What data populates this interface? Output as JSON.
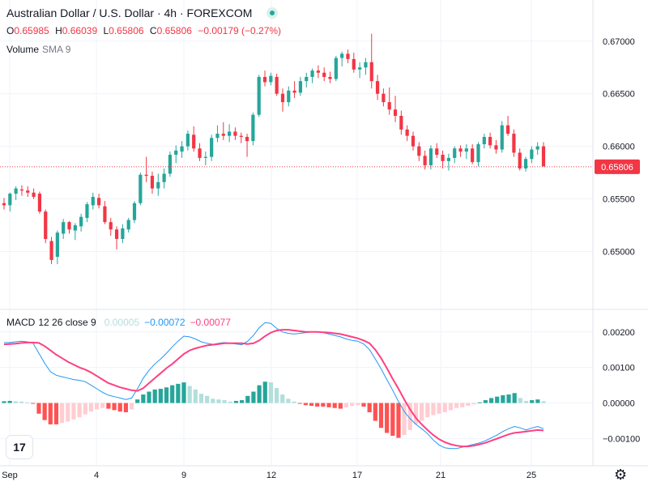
{
  "header": {
    "title": "Australian Dollar / U.S. Dollar · 4h · FOREXCOM",
    "ohlc": [
      {
        "label": "O",
        "value": "0.65985"
      },
      {
        "label": "H",
        "value": "0.66039"
      },
      {
        "label": "L",
        "value": "0.65806"
      },
      {
        "label": "C",
        "value": "0.65806"
      }
    ],
    "change": "−0.00179 (−0.27%)",
    "volume_label": "Volume",
    "volume_sub": "SMA 9"
  },
  "macd_legend": {
    "label": "MACD",
    "params": "12 26 close 9",
    "hist_value": "0.00005",
    "macd_value": "−0.00072",
    "signal_value": "−0.00077"
  },
  "colors": {
    "up": "#26a69a",
    "down": "#f23645",
    "hist_up_strong": "#26a69a",
    "hist_up_weak": "#b2dfdb",
    "hist_down_strong": "#ff5252",
    "hist_down_weak": "#ffcdd2",
    "macd_line": "#2196f3",
    "signal_line": "#ff4081"
  },
  "icons": {
    "logo": "tradingview-logo-icon",
    "settings": "gear-icon",
    "live": "live-status-icon"
  },
  "logo_text": "17",
  "settings_glyph": "⚙",
  "chart_data": [
    {
      "type": "candlestick",
      "title": "Australian Dollar / U.S. Dollar · 4h · FOREXCOM",
      "y_ticks": [
        "0.67000",
        "0.66500",
        "0.66000",
        "0.65500",
        "0.65000"
      ],
      "x_ticks": [
        "Sep",
        "4",
        "9",
        "12",
        "17",
        "21",
        "25"
      ],
      "ylim": [
        0.6445,
        0.6716
      ],
      "last_price": "0.65806",
      "grid": true,
      "candles": [
        [
          0.6546,
          0.6551,
          0.654,
          0.6544
        ],
        [
          0.6544,
          0.6556,
          0.6538,
          0.6555
        ],
        [
          0.6555,
          0.6562,
          0.6549,
          0.656
        ],
        [
          0.6559,
          0.6563,
          0.6553,
          0.6558
        ],
        [
          0.6558,
          0.6562,
          0.6552,
          0.6556
        ],
        [
          0.6556,
          0.656,
          0.655,
          0.6552
        ],
        [
          0.6555,
          0.6557,
          0.6536,
          0.6538
        ],
        [
          0.6538,
          0.654,
          0.6508,
          0.6512
        ],
        [
          0.651,
          0.6514,
          0.6488,
          0.6492
        ],
        [
          0.6495,
          0.652,
          0.6488,
          0.6518
        ],
        [
          0.6517,
          0.6531,
          0.6512,
          0.6528
        ],
        [
          0.6528,
          0.6529,
          0.6517,
          0.6521
        ],
        [
          0.652,
          0.6527,
          0.6511,
          0.6525
        ],
        [
          0.6524,
          0.6536,
          0.6519,
          0.6533
        ],
        [
          0.6532,
          0.6547,
          0.6528,
          0.6545
        ],
        [
          0.6544,
          0.6556,
          0.654,
          0.6552
        ],
        [
          0.6551,
          0.6555,
          0.6541,
          0.6544
        ],
        [
          0.6543,
          0.6548,
          0.6526,
          0.6528
        ],
        [
          0.6528,
          0.6532,
          0.6515,
          0.6521
        ],
        [
          0.6521,
          0.6524,
          0.6502,
          0.6512
        ],
        [
          0.6512,
          0.6526,
          0.6508,
          0.6522
        ],
        [
          0.6521,
          0.6532,
          0.6518,
          0.653
        ],
        [
          0.653,
          0.6548,
          0.6527,
          0.6546
        ],
        [
          0.6546,
          0.6575,
          0.6544,
          0.6573
        ],
        [
          0.6573,
          0.659,
          0.6566,
          0.6572
        ],
        [
          0.6572,
          0.6576,
          0.6555,
          0.656
        ],
        [
          0.656,
          0.6574,
          0.6553,
          0.6566
        ],
        [
          0.6566,
          0.6579,
          0.656,
          0.6574
        ],
        [
          0.6574,
          0.6595,
          0.6571,
          0.6592
        ],
        [
          0.6592,
          0.6601,
          0.6584,
          0.6596
        ],
        [
          0.6595,
          0.6605,
          0.6589,
          0.66
        ],
        [
          0.66,
          0.6615,
          0.6596,
          0.6612
        ],
        [
          0.6611,
          0.6619,
          0.6595,
          0.6598
        ],
        [
          0.6598,
          0.6603,
          0.6586,
          0.6589
        ],
        [
          0.6589,
          0.6595,
          0.6582,
          0.659
        ],
        [
          0.659,
          0.6611,
          0.6586,
          0.6608
        ],
        [
          0.6608,
          0.662,
          0.6604,
          0.6612
        ],
        [
          0.6612,
          0.6623,
          0.6606,
          0.661
        ],
        [
          0.661,
          0.6621,
          0.6604,
          0.6614
        ],
        [
          0.6614,
          0.6618,
          0.6606,
          0.661
        ],
        [
          0.661,
          0.6613,
          0.6603,
          0.6609
        ],
        [
          0.6609,
          0.6612,
          0.659,
          0.6605
        ],
        [
          0.6605,
          0.6632,
          0.6601,
          0.663
        ],
        [
          0.663,
          0.6668,
          0.6628,
          0.6666
        ],
        [
          0.6666,
          0.6672,
          0.6657,
          0.6661
        ],
        [
          0.6661,
          0.667,
          0.6658,
          0.6667
        ],
        [
          0.6666,
          0.6669,
          0.6648,
          0.665
        ],
        [
          0.665,
          0.6655,
          0.6633,
          0.6642
        ],
        [
          0.6642,
          0.6657,
          0.6638,
          0.6653
        ],
        [
          0.6653,
          0.6662,
          0.6646,
          0.6651
        ],
        [
          0.6651,
          0.6666,
          0.6648,
          0.6662
        ],
        [
          0.6662,
          0.667,
          0.6656,
          0.6666
        ],
        [
          0.6666,
          0.6674,
          0.666,
          0.6672
        ],
        [
          0.6672,
          0.6677,
          0.6665,
          0.667
        ],
        [
          0.667,
          0.6675,
          0.6662,
          0.6666
        ],
        [
          0.6666,
          0.6671,
          0.666,
          0.6664
        ],
        [
          0.6664,
          0.6686,
          0.6662,
          0.6684
        ],
        [
          0.6684,
          0.669,
          0.6676,
          0.6688
        ],
        [
          0.6688,
          0.6692,
          0.6679,
          0.6683
        ],
        [
          0.6683,
          0.6689,
          0.667,
          0.6673
        ],
        [
          0.6673,
          0.668,
          0.6665,
          0.6675
        ],
        [
          0.6675,
          0.6684,
          0.6668,
          0.668
        ],
        [
          0.668,
          0.6707,
          0.6655,
          0.6662
        ],
        [
          0.6662,
          0.6668,
          0.6644,
          0.665
        ],
        [
          0.665,
          0.6655,
          0.6638,
          0.6642
        ],
        [
          0.6642,
          0.6656,
          0.663,
          0.6635
        ],
        [
          0.6635,
          0.6648,
          0.6623,
          0.6629
        ],
        [
          0.6629,
          0.6634,
          0.6611,
          0.6616
        ],
        [
          0.6616,
          0.662,
          0.6605,
          0.661
        ],
        [
          0.661,
          0.6614,
          0.6596,
          0.66
        ],
        [
          0.66,
          0.6604,
          0.6586,
          0.6591
        ],
        [
          0.6591,
          0.6596,
          0.6578,
          0.6582
        ],
        [
          0.6582,
          0.6601,
          0.6578,
          0.6598
        ],
        [
          0.6598,
          0.6603,
          0.6589,
          0.6592
        ],
        [
          0.6592,
          0.6596,
          0.6579,
          0.6586
        ],
        [
          0.6586,
          0.6593,
          0.6577,
          0.6589
        ],
        [
          0.6589,
          0.66,
          0.6584,
          0.6598
        ],
        [
          0.6598,
          0.6601,
          0.659,
          0.6595
        ],
        [
          0.6595,
          0.6602,
          0.6588,
          0.6598
        ],
        [
          0.6598,
          0.6602,
          0.6583,
          0.6585
        ],
        [
          0.6585,
          0.6604,
          0.6581,
          0.6602
        ],
        [
          0.6602,
          0.6612,
          0.6598,
          0.6609
        ],
        [
          0.6609,
          0.6613,
          0.6598,
          0.6601
        ],
        [
          0.6601,
          0.6606,
          0.6593,
          0.6597
        ],
        [
          0.6597,
          0.6624,
          0.6594,
          0.662
        ],
        [
          0.662,
          0.6629,
          0.661,
          0.6612
        ],
        [
          0.6612,
          0.6616,
          0.659,
          0.6594
        ],
        [
          0.6594,
          0.6598,
          0.6577,
          0.6579
        ],
        [
          0.6579,
          0.659,
          0.6576,
          0.6588
        ],
        [
          0.6588,
          0.66,
          0.6584,
          0.6597
        ],
        [
          0.6597,
          0.6604,
          0.6592,
          0.66
        ],
        [
          0.66,
          0.6604,
          0.6581,
          0.6581
        ]
      ]
    },
    {
      "type": "bar+line",
      "title": "MACD 12 26 close 9",
      "y_ticks": [
        "0.00200",
        "0.00100",
        "0.00000",
        "−0.00100"
      ],
      "ylim": [
        -0.00165,
        0.00245
      ],
      "series": [
        {
          "name": "Histogram",
          "values": [
            5e-05,
            6e-05,
            5e-05,
            4e-05,
            2e-05,
            -1e-05,
            -0.0003,
            -0.00048,
            -0.0006,
            -0.0006,
            -0.00056,
            -0.00052,
            -0.00046,
            -0.0004,
            -0.00032,
            -0.00024,
            -0.00018,
            -0.00014,
            -0.00016,
            -0.0002,
            -0.00024,
            -0.00026,
            -0.00018,
            0.0001,
            0.00024,
            0.00032,
            0.00038,
            0.0004,
            0.00044,
            0.0005,
            0.00054,
            0.00058,
            0.00048,
            0.00038,
            0.00026,
            0.0002,
            0.00012,
            0.0001,
            8e-05,
            4e-05,
            6e-05,
            8e-05,
            0.0002,
            0.00032,
            0.0005,
            0.0006,
            0.00058,
            0.00042,
            0.00024,
            0.00012,
            4e-05,
            -2e-05,
            -6e-05,
            -8e-05,
            -0.0001,
            -0.0001,
            -0.00012,
            -0.00014,
            -0.00016,
            -0.00012,
            -8e-05,
            -6e-05,
            -0.0001,
            -0.00026,
            -0.0005,
            -0.0007,
            -0.00084,
            -0.00092,
            -0.00098,
            -0.0009,
            -0.00076,
            -0.0006,
            -0.0005,
            -0.0004,
            -0.00034,
            -0.0003,
            -0.00026,
            -0.0002,
            -0.00014,
            -0.00012,
            -8e-05,
            -4e-05,
            2e-05,
            8e-05,
            0.00014,
            0.00018,
            0.00022,
            0.00024,
            0.00028,
            0.00014,
            6e-05,
            8e-05,
            0.0001,
            5e-05
          ]
        },
        {
          "name": "MACD",
          "values": [
            0.0017,
            0.0017,
            0.00172,
            0.00174,
            0.00172,
            0.00168,
            0.0014,
            0.00112,
            0.00088,
            0.00078,
            0.00074,
            0.0007,
            0.00066,
            0.00064,
            0.0006,
            0.0005,
            0.0004,
            0.0003,
            0.00022,
            0.00018,
            0.00014,
            0.0001,
            0.00014,
            0.0004,
            0.0007,
            0.00092,
            0.0011,
            0.00124,
            0.0014,
            0.00158,
            0.00174,
            0.00188,
            0.00186,
            0.0018,
            0.00172,
            0.00168,
            0.00165,
            0.00168,
            0.0017,
            0.00168,
            0.00166,
            0.00164,
            0.00174,
            0.0019,
            0.00212,
            0.00226,
            0.00224,
            0.0021,
            0.002,
            0.00196,
            0.00194,
            0.00196,
            0.00198,
            0.002,
            0.002,
            0.00198,
            0.00194,
            0.0019,
            0.00186,
            0.0018,
            0.00176,
            0.00174,
            0.00166,
            0.0015,
            0.00124,
            0.00096,
            0.00066,
            0.00036,
            4e-05,
            -0.00024,
            -0.00044,
            -0.0006,
            -0.00072,
            -0.00086,
            -0.00104,
            -0.00118,
            -0.00126,
            -0.00128,
            -0.00128,
            -0.00124,
            -0.0012,
            -0.00116,
            -0.00112,
            -0.00106,
            -0.00098,
            -0.0009,
            -0.0008,
            -0.00072,
            -0.00066,
            -0.0007,
            -0.00076,
            -0.0007,
            -0.00066,
            -0.00072
          ]
        },
        {
          "name": "Signal",
          "values": [
            0.00165,
            0.00166,
            0.00167,
            0.00169,
            0.0017,
            0.0017,
            0.00169,
            0.0016,
            0.00148,
            0.00136,
            0.00126,
            0.00116,
            0.00108,
            0.001,
            0.00094,
            0.00086,
            0.00076,
            0.00066,
            0.00056,
            0.0005,
            0.00044,
            0.0004,
            0.00036,
            0.00034,
            0.00042,
            0.00056,
            0.0007,
            0.00084,
            0.00098,
            0.0011,
            0.00124,
            0.00138,
            0.00148,
            0.00154,
            0.00158,
            0.00162,
            0.00164,
            0.00166,
            0.00168,
            0.00168,
            0.00168,
            0.00168,
            0.00166,
            0.00168,
            0.00176,
            0.00188,
            0.00198,
            0.00204,
            0.00206,
            0.00206,
            0.00204,
            0.00202,
            0.002,
            0.002,
            0.002,
            0.00199,
            0.00198,
            0.00196,
            0.00194,
            0.0019,
            0.00186,
            0.00182,
            0.00176,
            0.00168,
            0.0015,
            0.00126,
            0.00098,
            0.00068,
            0.0004,
            0.0001,
            -0.00018,
            -0.00042,
            -0.0006,
            -0.00076,
            -0.0009,
            -0.00102,
            -0.0011,
            -0.00116,
            -0.0012,
            -0.00122,
            -0.00122,
            -0.0012,
            -0.00116,
            -0.00112,
            -0.00106,
            -0.001,
            -0.00094,
            -0.00088,
            -0.00084,
            -0.00082,
            -0.0008,
            -0.00078,
            -0.00076,
            -0.00077
          ]
        }
      ]
    }
  ]
}
